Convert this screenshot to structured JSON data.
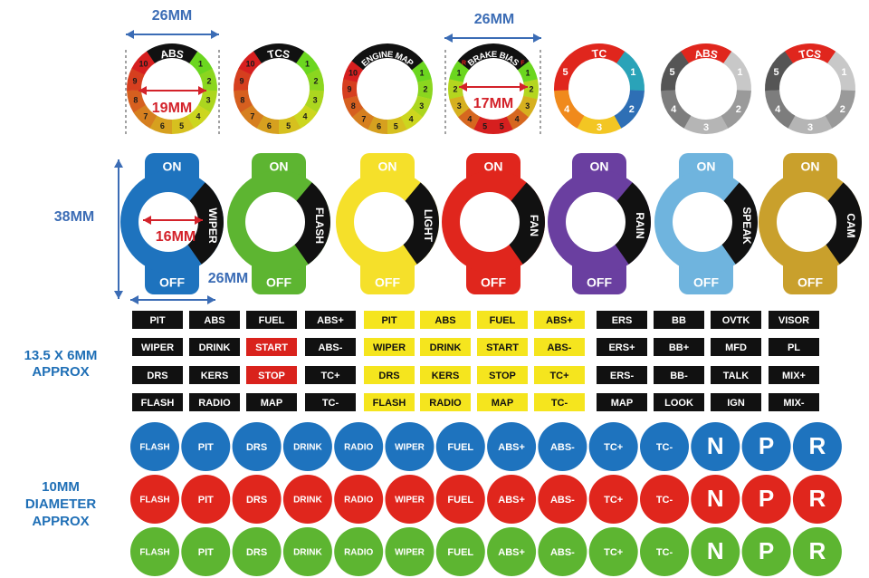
{
  "dimension_labels": [
    "26MM",
    "26MM",
    "19MM",
    "17MM",
    "38MM",
    "16MM",
    "26MM"
  ],
  "section_labels": [
    [
      "13.5 X 6MM",
      "APPROX"
    ],
    [
      "10MM",
      "DIAMETER",
      "APPROX"
    ]
  ],
  "rings": [
    {
      "title": "ABS",
      "numbers": [
        "1",
        "2",
        "3",
        "4",
        "5",
        "6",
        "7",
        "8",
        "9",
        "10"
      ]
    },
    {
      "title": "TCS",
      "numbers": [
        "1",
        "2",
        "3",
        "4",
        "5",
        "6",
        "7",
        "8",
        "9",
        "10"
      ]
    },
    {
      "title": "ENGINE MAP",
      "numbers": [
        "1",
        "2",
        "3",
        "4",
        "5",
        "6",
        "7",
        "8",
        "9",
        "10"
      ]
    },
    {
      "title": "BRAKE BIAS",
      "numbers": [
        "1",
        "2",
        "3",
        "4",
        "5",
        "5",
        "4",
        "3",
        "2",
        "1"
      ],
      "markers": [
        "R",
        "F"
      ]
    },
    {
      "title": "TC",
      "numbers": [
        "1",
        "2",
        "3",
        "4",
        "5"
      ]
    },
    {
      "title": "ABS",
      "numbers": [
        "1",
        "2",
        "3",
        "4",
        "5"
      ]
    },
    {
      "title": "TCS",
      "numbers": [
        "1",
        "2",
        "3",
        "4",
        "5"
      ]
    }
  ],
  "switches": [
    {
      "top": "ON",
      "label": "WIPER",
      "bottom": "OFF"
    },
    {
      "top": "ON",
      "label": "FLASH",
      "bottom": "OFF"
    },
    {
      "top": "ON",
      "label": "LIGHT",
      "bottom": "OFF"
    },
    {
      "top": "ON",
      "label": "FAN",
      "bottom": "OFF"
    },
    {
      "top": "ON",
      "label": "RAIN",
      "bottom": "OFF"
    },
    {
      "top": "ON",
      "label": "SPEAK",
      "bottom": "OFF"
    },
    {
      "top": "ON",
      "label": "CAM",
      "bottom": "OFF"
    }
  ],
  "label_sets": [
    [
      [
        "PIT",
        "ABS",
        "FUEL",
        "ABS+"
      ],
      [
        "WIPER",
        "DRINK",
        "START",
        "ABS-"
      ],
      [
        "DRS",
        "KERS",
        "STOP",
        "TC+"
      ],
      [
        "FLASH",
        "RADIO",
        "MAP",
        "TC-"
      ]
    ],
    [
      [
        "ERS",
        "BB",
        "OVTK",
        "VISOR"
      ],
      [
        "ERS+",
        "BB+",
        "MFD",
        "PL"
      ],
      [
        "ERS-",
        "BB-",
        "TALK",
        "MIX+"
      ],
      [
        "MAP",
        "LOOK",
        "IGN",
        "MIX-"
      ]
    ]
  ],
  "buttons": [
    "FLASH",
    "PIT",
    "DRS",
    "DRINK",
    "RADIO",
    "WIPER",
    "FUEL",
    "ABS+",
    "ABS-",
    "TC+",
    "TC-",
    "N",
    "P",
    "R"
  ]
}
